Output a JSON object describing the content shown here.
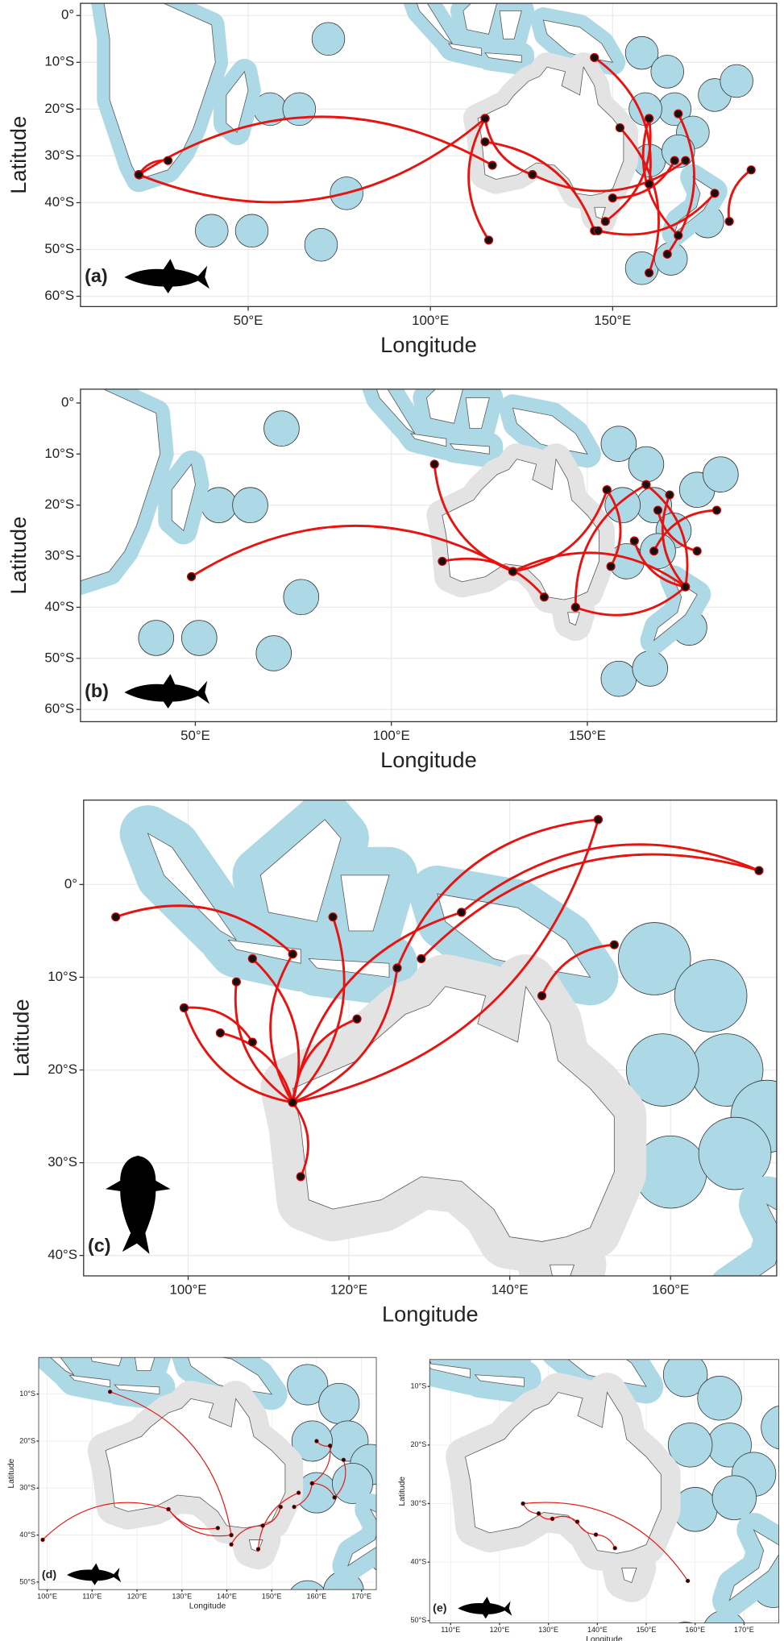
{
  "panels": [
    {
      "label": "(a)",
      "x_axis_title": "Longitude",
      "y_axis_title": "Latitude",
      "xlim": [
        4,
        195
      ],
      "ylim": [
        -62.2,
        2.6
      ],
      "xticks": [
        {
          "value": 50,
          "label": "50°E"
        },
        {
          "value": 100,
          "label": "100°E"
        },
        {
          "value": 150,
          "label": "150°E"
        }
      ],
      "yticks": [
        {
          "value": 0,
          "label": "0°"
        },
        {
          "value": -10,
          "label": "10°S"
        },
        {
          "value": -20,
          "label": "20°S"
        },
        {
          "value": -30,
          "label": "30°S"
        },
        {
          "value": -40,
          "label": "40°S"
        },
        {
          "value": -50,
          "label": "50°S"
        },
        {
          "value": -60,
          "label": "60°S"
        }
      ],
      "tracks": [
        {
          "lon": [
            20,
            28
          ],
          "lat": [
            -34,
            -31
          ]
        },
        {
          "lon": [
            20,
            115
          ],
          "lat": [
            -34,
            -22
          ]
        },
        {
          "lon": [
            20,
            117
          ],
          "lat": [
            -34,
            -32
          ]
        },
        {
          "lon": [
            115,
            128
          ],
          "lat": [
            -22,
            -34
          ]
        },
        {
          "lon": [
            115,
            145
          ],
          "lat": [
            -27,
            -46
          ]
        },
        {
          "lon": [
            115,
            116
          ],
          "lat": [
            -22,
            -48
          ]
        },
        {
          "lon": [
            145,
            160
          ],
          "lat": [
            -9,
            -36
          ]
        },
        {
          "lon": [
            128,
            170
          ],
          "lat": [
            -34,
            -31
          ]
        },
        {
          "lon": [
            152,
            160
          ],
          "lat": [
            -24,
            -55
          ]
        },
        {
          "lon": [
            160,
            168
          ],
          "lat": [
            -22,
            -47
          ]
        },
        {
          "lon": [
            167,
            150
          ],
          "lat": [
            -31,
            -39
          ]
        },
        {
          "lon": [
            188,
            182
          ],
          "lat": [
            -33,
            -44
          ]
        },
        {
          "lon": [
            178,
            146
          ],
          "lat": [
            -38,
            -46
          ]
        },
        {
          "lon": [
            165,
            168
          ],
          "lat": [
            -51,
            -21
          ]
        },
        {
          "lon": [
            160,
            148
          ],
          "lat": [
            -22,
            -44
          ]
        }
      ]
    },
    {
      "label": "(b)",
      "x_axis_title": "Longitude",
      "y_axis_title": "Latitude",
      "xlim": [
        20.7,
        198.3
      ],
      "ylim": [
        -62.4,
        2.7
      ],
      "xticks": [
        {
          "value": 50,
          "label": "50°E"
        },
        {
          "value": 100,
          "label": "100°E"
        },
        {
          "value": 150,
          "label": "150°E"
        }
      ],
      "yticks": [
        {
          "value": 0,
          "label": "0°"
        },
        {
          "value": -10,
          "label": "10°S"
        },
        {
          "value": -20,
          "label": "20°S"
        },
        {
          "value": -30,
          "label": "30°S"
        },
        {
          "value": -40,
          "label": "40°S"
        },
        {
          "value": -50,
          "label": "50°S"
        },
        {
          "value": -60,
          "label": "60°S"
        }
      ],
      "tracks": [
        {
          "lon": [
            49,
            131
          ],
          "lat": [
            -34,
            -33
          ]
        },
        {
          "lon": [
            111,
            131
          ],
          "lat": [
            -12,
            -33
          ]
        },
        {
          "lon": [
            113,
            139
          ],
          "lat": [
            -31,
            -38
          ]
        },
        {
          "lon": [
            131,
            155
          ],
          "lat": [
            -33,
            -17
          ]
        },
        {
          "lon": [
            131,
            175
          ],
          "lat": [
            -33,
            -36
          ]
        },
        {
          "lon": [
            147,
            175
          ],
          "lat": [
            -40,
            -36
          ]
        },
        {
          "lon": [
            155,
            156
          ],
          "lat": [
            -17,
            -32
          ]
        },
        {
          "lon": [
            162,
            175
          ],
          "lat": [
            -27,
            -36
          ]
        },
        {
          "lon": [
            165,
            175
          ],
          "lat": [
            -16,
            -36
          ]
        },
        {
          "lon": [
            171,
            175
          ],
          "lat": [
            -18,
            -36
          ]
        },
        {
          "lon": [
            167,
            183
          ],
          "lat": [
            -29,
            -21
          ]
        },
        {
          "lon": [
            168,
            178
          ],
          "lat": [
            -21,
            -29
          ]
        },
        {
          "lon": [
            147,
            165
          ],
          "lat": [
            -40,
            -16
          ]
        }
      ]
    },
    {
      "label": "(c)",
      "x_axis_title": "Longitude",
      "y_axis_title": "Latitude",
      "xlim": [
        87,
        173.2
      ],
      "ylim": [
        -42.2,
        9.1
      ],
      "xticks": [
        {
          "value": 100,
          "label": "100°E"
        },
        {
          "value": 120,
          "label": "120°E"
        },
        {
          "value": 140,
          "label": "140°E"
        },
        {
          "value": 160,
          "label": "160°E"
        }
      ],
      "yticks": [
        {
          "value": 0,
          "label": "0°"
        },
        {
          "value": -10,
          "label": "10°S"
        },
        {
          "value": -20,
          "label": "20°S"
        },
        {
          "value": -30,
          "label": "30°S"
        },
        {
          "value": -40,
          "label": "40°S"
        }
      ],
      "tracks": [
        {
          "lon": [
            91,
            113
          ],
          "lat": [
            -3.5,
            -7.5
          ]
        },
        {
          "lon": [
            99.5,
            113
          ],
          "lat": [
            -13.3,
            -23.5
          ]
        },
        {
          "lon": [
            104,
            113
          ],
          "lat": [
            -16,
            -23.5
          ]
        },
        {
          "lon": [
            106,
            113
          ],
          "lat": [
            -10.5,
            -23.5
          ]
        },
        {
          "lon": [
            108,
            113
          ],
          "lat": [
            -8,
            -23.5
          ]
        },
        {
          "lon": [
            113,
            113
          ],
          "lat": [
            -7.5,
            -23.5
          ]
        },
        {
          "lon": [
            118,
            113
          ],
          "lat": [
            -3.5,
            -23.5
          ]
        },
        {
          "lon": [
            121,
            113
          ],
          "lat": [
            -14.5,
            -23.5
          ]
        },
        {
          "lon": [
            126,
            113
          ],
          "lat": [
            -9,
            -23.5
          ]
        },
        {
          "lon": [
            134,
            113
          ],
          "lat": [
            -3,
            -23.5
          ]
        },
        {
          "lon": [
            151,
            113
          ],
          "lat": [
            7,
            -23.5
          ]
        },
        {
          "lon": [
            114,
            113
          ],
          "lat": [
            -31.5,
            -23.5
          ]
        },
        {
          "lon": [
            134,
            171
          ],
          "lat": [
            -3,
            1.5
          ]
        },
        {
          "lon": [
            151,
            126
          ],
          "lat": [
            7,
            -9
          ]
        },
        {
          "lon": [
            144,
            153
          ],
          "lat": [
            -12,
            -6.5
          ]
        },
        {
          "lon": [
            171,
            129
          ],
          "lat": [
            1.5,
            -8
          ]
        },
        {
          "lon": [
            99.5,
            108
          ],
          "lat": [
            -13.3,
            -17
          ]
        }
      ]
    },
    {
      "label": "(d)",
      "x_axis_title": "Longitude",
      "y_axis_title": "Latitude",
      "xlim": [
        98.1,
        173.3
      ],
      "ylim": [
        -51.6,
        -2.2
      ],
      "xticks": [
        {
          "value": 100,
          "label": "100°E"
        },
        {
          "value": 110,
          "label": "110°E"
        },
        {
          "value": 120,
          "label": "120°E"
        },
        {
          "value": 130,
          "label": "130°E"
        },
        {
          "value": 140,
          "label": "140°E"
        },
        {
          "value": 150,
          "label": "150°E"
        },
        {
          "value": 160,
          "label": "160°E"
        },
        {
          "value": 170,
          "label": "170°E"
        }
      ],
      "yticks": [
        {
          "value": -10,
          "label": "10°S"
        },
        {
          "value": -20,
          "label": "20°S"
        },
        {
          "value": -30,
          "label": "30°S"
        },
        {
          "value": -40,
          "label": "40°S"
        },
        {
          "value": -50,
          "label": "50°S"
        }
      ],
      "tracks": [
        {
          "lon": [
            99,
            127
          ],
          "lat": [
            -41,
            -34.5
          ]
        },
        {
          "lon": [
            127,
            141
          ],
          "lat": [
            -34.5,
            -40
          ]
        },
        {
          "lon": [
            114,
            141
          ],
          "lat": [
            -9.5,
            -40
          ]
        },
        {
          "lon": [
            127,
            138
          ],
          "lat": [
            -34.5,
            -38.5
          ]
        },
        {
          "lon": [
            141,
            148
          ],
          "lat": [
            -42,
            -38
          ]
        },
        {
          "lon": [
            148,
            152
          ],
          "lat": [
            -38,
            -34
          ]
        },
        {
          "lon": [
            147,
            156
          ],
          "lat": [
            -43,
            -31
          ]
        },
        {
          "lon": [
            155,
            159
          ],
          "lat": [
            -34,
            -29
          ]
        },
        {
          "lon": [
            159,
            164
          ],
          "lat": [
            -29,
            -32
          ]
        },
        {
          "lon": [
            160,
            163
          ],
          "lat": [
            -20,
            -21
          ]
        },
        {
          "lon": [
            163,
            159
          ],
          "lat": [
            -21,
            -29
          ]
        },
        {
          "lon": [
            164,
            166
          ],
          "lat": [
            -32,
            -24
          ]
        }
      ]
    },
    {
      "label": "(e)",
      "x_axis_title": "Longitude",
      "y_axis_title": "Latitude",
      "xlim": [
        105.7,
        177.1
      ],
      "ylim": [
        -50.4,
        -5.4
      ],
      "xticks": [
        {
          "value": 110,
          "label": "110°E"
        },
        {
          "value": 120,
          "label": "120°E"
        },
        {
          "value": 130,
          "label": "130°E"
        },
        {
          "value": 140,
          "label": "140°E"
        },
        {
          "value": 150,
          "label": "150°E"
        },
        {
          "value": 160,
          "label": "160°E"
        },
        {
          "value": 170,
          "label": "170°E"
        }
      ],
      "yticks": [
        {
          "value": -10,
          "label": "10°S"
        },
        {
          "value": -20,
          "label": "20°S"
        },
        {
          "value": -30,
          "label": "30°S"
        },
        {
          "value": -40,
          "label": "40°S"
        },
        {
          "value": -50,
          "label": "50°S"
        }
      ],
      "tracks": [
        {
          "lon": [
            124.8,
            158.5
          ],
          "lat": [
            -30,
            -43.2
          ]
        },
        {
          "lon": [
            128,
            130.8
          ],
          "lat": [
            -31.7,
            -32.6
          ]
        },
        {
          "lon": [
            130.8,
            135.9
          ],
          "lat": [
            -32.6,
            -33.1
          ]
        },
        {
          "lon": [
            135.9,
            139.7
          ],
          "lat": [
            -33.1,
            -35.3
          ]
        },
        {
          "lon": [
            139.7,
            143.6
          ],
          "lat": [
            -35.3,
            -37.6
          ]
        },
        {
          "lon": [
            124.8,
            128
          ],
          "lat": [
            -30,
            -31.7
          ]
        }
      ]
    }
  ]
}
